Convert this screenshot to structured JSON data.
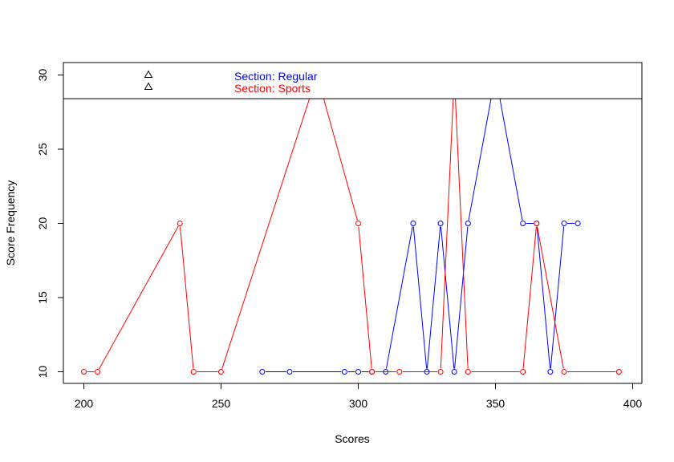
{
  "chart_data": {
    "type": "line",
    "xlabel": "Scores",
    "ylabel": "Score Frequency",
    "xlim": [
      200,
      400
    ],
    "ylim": [
      10,
      30
    ],
    "x_ticks": [
      "200",
      "250",
      "300",
      "350",
      "400"
    ],
    "y_ticks": [
      "10",
      "15",
      "20",
      "25",
      "30"
    ],
    "legend_position": "top-left",
    "series": [
      {
        "name": "Section: Regular",
        "color": "#0000ff",
        "x": [
          265,
          275,
          295,
          300,
          305,
          310,
          320,
          325,
          330,
          335,
          340,
          350,
          360,
          365,
          370,
          375,
          380
        ],
        "y": [
          10,
          10,
          10,
          10,
          10,
          10,
          20,
          10,
          20,
          10,
          20,
          30,
          20,
          20,
          10,
          20,
          20
        ]
      },
      {
        "name": "Section: Sports",
        "color": "#ff0000",
        "x": [
          200,
          205,
          235,
          240,
          250,
          285,
          300,
          305,
          315,
          330,
          335,
          340,
          360,
          365,
          375,
          395
        ],
        "y": [
          10,
          10,
          20,
          10,
          10,
          30,
          20,
          10,
          10,
          10,
          30,
          10,
          10,
          20,
          10,
          10
        ]
      }
    ]
  }
}
